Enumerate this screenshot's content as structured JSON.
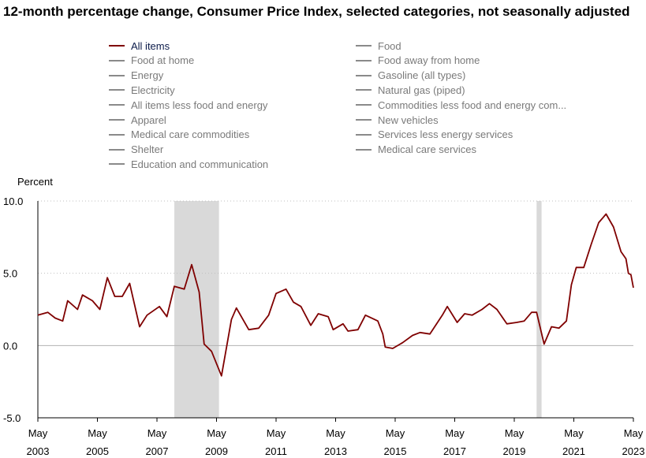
{
  "title": "12-month percentage change, Consumer Price Index, selected categories, not seasonally adjusted",
  "legend": {
    "left": [
      {
        "label": "All items",
        "active": true
      },
      {
        "label": "Food at home",
        "active": false
      },
      {
        "label": "Energy",
        "active": false
      },
      {
        "label": "Electricity",
        "active": false
      },
      {
        "label": "All items less food and energy",
        "active": false
      },
      {
        "label": "Apparel",
        "active": false
      },
      {
        "label": "Medical care commodities",
        "active": false
      },
      {
        "label": "Shelter",
        "active": false
      },
      {
        "label": "Education and communication",
        "active": false
      }
    ],
    "right": [
      {
        "label": "Food",
        "active": false
      },
      {
        "label": "Food away from home",
        "active": false
      },
      {
        "label": "Gasoline (all types)",
        "active": false
      },
      {
        "label": "Natural gas (piped)",
        "active": false
      },
      {
        "label": "Commodities less food and energy com...",
        "active": false
      },
      {
        "label": "New vehicles",
        "active": false
      },
      {
        "label": "Services less energy services",
        "active": false
      },
      {
        "label": "Medical care services",
        "active": false
      }
    ]
  },
  "colors": {
    "line": "#7f0000",
    "recession": "#d9d9d9",
    "inactive": "#8a8a8a",
    "grid": "#bfbfbf"
  },
  "chart_data": {
    "type": "line",
    "ylabel": "Percent",
    "ylim": [
      -5.0,
      10.0
    ],
    "yticks": [
      {
        "value": -5.0,
        "label": "-5.0"
      },
      {
        "value": 0.0,
        "label": "0.0"
      },
      {
        "value": 5.0,
        "label": "5.0"
      },
      {
        "value": 10.0,
        "label": "10.0"
      }
    ],
    "xlim": [
      "2003-05",
      "2023-05"
    ],
    "xticks": [
      {
        "x": "2003-05",
        "month": "May",
        "year": "2003"
      },
      {
        "x": "2005-05",
        "month": "May",
        "year": "2005"
      },
      {
        "x": "2007-05",
        "month": "May",
        "year": "2007"
      },
      {
        "x": "2009-05",
        "month": "May",
        "year": "2009"
      },
      {
        "x": "2011-05",
        "month": "May",
        "year": "2011"
      },
      {
        "x": "2013-05",
        "month": "May",
        "year": "2013"
      },
      {
        "x": "2015-05",
        "month": "May",
        "year": "2015"
      },
      {
        "x": "2017-05",
        "month": "May",
        "year": "2017"
      },
      {
        "x": "2019-05",
        "month": "May",
        "year": "2019"
      },
      {
        "x": "2021-05",
        "month": "May",
        "year": "2021"
      },
      {
        "x": "2023-05",
        "month": "May",
        "year": "2023"
      }
    ],
    "recessions": [
      {
        "start": "2007-12",
        "end": "2009-06"
      },
      {
        "start": "2020-02",
        "end": "2020-04"
      }
    ],
    "series": [
      {
        "name": "All items",
        "points": [
          [
            "2003-05",
            2.1
          ],
          [
            "2003-09",
            2.3
          ],
          [
            "2003-12",
            1.9
          ],
          [
            "2004-03",
            1.7
          ],
          [
            "2004-05",
            3.1
          ],
          [
            "2004-09",
            2.5
          ],
          [
            "2004-11",
            3.5
          ],
          [
            "2005-03",
            3.1
          ],
          [
            "2005-06",
            2.5
          ],
          [
            "2005-09",
            4.7
          ],
          [
            "2005-12",
            3.4
          ],
          [
            "2006-03",
            3.4
          ],
          [
            "2006-06",
            4.3
          ],
          [
            "2006-10",
            1.3
          ],
          [
            "2007-01",
            2.1
          ],
          [
            "2007-06",
            2.7
          ],
          [
            "2007-09",
            2.0
          ],
          [
            "2007-12",
            4.1
          ],
          [
            "2008-04",
            3.9
          ],
          [
            "2008-07",
            5.6
          ],
          [
            "2008-10",
            3.7
          ],
          [
            "2008-12",
            0.1
          ],
          [
            "2009-03",
            -0.4
          ],
          [
            "2009-07",
            -2.1
          ],
          [
            "2009-11",
            1.8
          ],
          [
            "2010-01",
            2.6
          ],
          [
            "2010-06",
            1.1
          ],
          [
            "2010-10",
            1.2
          ],
          [
            "2011-02",
            2.1
          ],
          [
            "2011-05",
            3.6
          ],
          [
            "2011-09",
            3.9
          ],
          [
            "2011-12",
            3.0
          ],
          [
            "2012-03",
            2.7
          ],
          [
            "2012-07",
            1.4
          ],
          [
            "2012-10",
            2.2
          ],
          [
            "2013-02",
            2.0
          ],
          [
            "2013-04",
            1.1
          ],
          [
            "2013-08",
            1.5
          ],
          [
            "2013-10",
            1.0
          ],
          [
            "2014-02",
            1.1
          ],
          [
            "2014-05",
            2.1
          ],
          [
            "2014-10",
            1.7
          ],
          [
            "2014-12",
            0.8
          ],
          [
            "2015-01",
            -0.1
          ],
          [
            "2015-04",
            -0.2
          ],
          [
            "2015-08",
            0.2
          ],
          [
            "2015-12",
            0.7
          ],
          [
            "2016-03",
            0.9
          ],
          [
            "2016-07",
            0.8
          ],
          [
            "2016-12",
            2.1
          ],
          [
            "2017-02",
            2.7
          ],
          [
            "2017-06",
            1.6
          ],
          [
            "2017-09",
            2.2
          ],
          [
            "2017-12",
            2.1
          ],
          [
            "2018-04",
            2.5
          ],
          [
            "2018-07",
            2.9
          ],
          [
            "2018-10",
            2.5
          ],
          [
            "2019-02",
            1.5
          ],
          [
            "2019-06",
            1.6
          ],
          [
            "2019-09",
            1.7
          ],
          [
            "2019-12",
            2.3
          ],
          [
            "2020-02",
            2.3
          ],
          [
            "2020-05",
            0.1
          ],
          [
            "2020-08",
            1.3
          ],
          [
            "2020-11",
            1.2
          ],
          [
            "2021-02",
            1.7
          ],
          [
            "2021-04",
            4.2
          ],
          [
            "2021-06",
            5.4
          ],
          [
            "2021-09",
            5.4
          ],
          [
            "2021-12",
            7.0
          ],
          [
            "2022-03",
            8.5
          ],
          [
            "2022-06",
            9.1
          ],
          [
            "2022-09",
            8.2
          ],
          [
            "2022-12",
            6.5
          ],
          [
            "2023-02",
            6.0
          ],
          [
            "2023-03",
            5.0
          ],
          [
            "2023-04",
            4.9
          ],
          [
            "2023-05",
            4.0
          ]
        ]
      }
    ]
  }
}
